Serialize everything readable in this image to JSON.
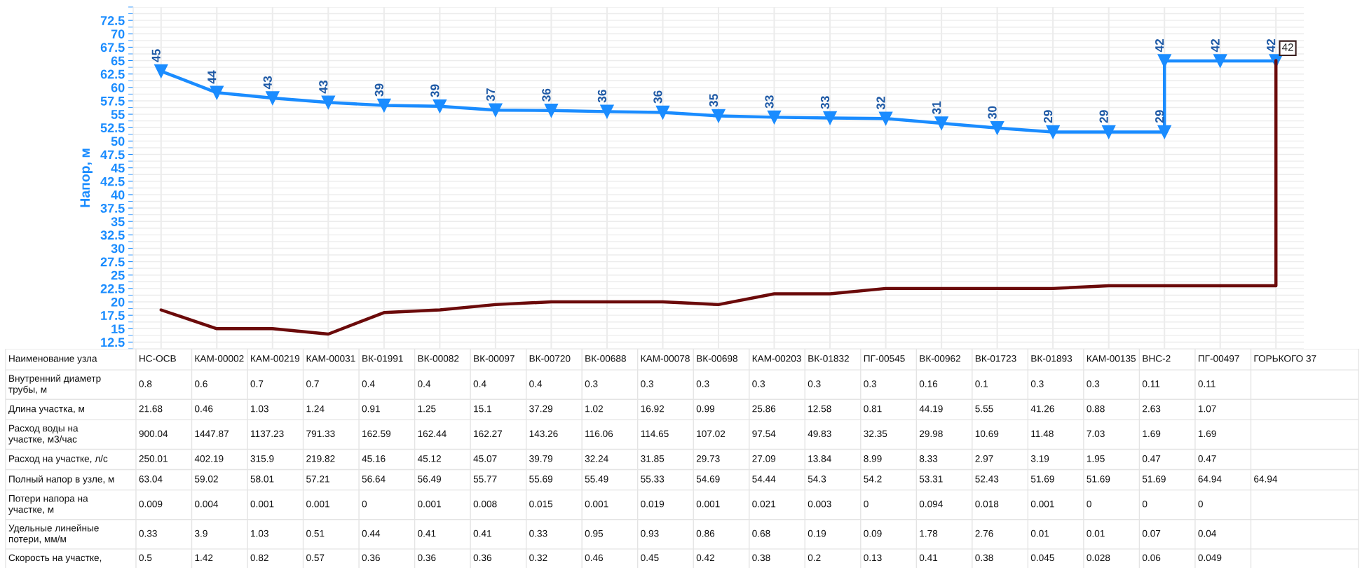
{
  "chart_data": {
    "type": "line",
    "ylabel": "Напор, м",
    "categories": [
      "НС-ОСВ",
      "КАМ-00002",
      "КАМ-00219",
      "КАМ-00031",
      "ВК-01991",
      "ВК-00082",
      "ВК-00097",
      "ВК-00720",
      "ВК-00688",
      "КАМ-00078",
      "ВК-00698",
      "КАМ-00203",
      "ВК-01832",
      "ПГ-00545",
      "ВК-00962",
      "ВК-01723",
      "ВК-01893",
      "КАМ-00135",
      "ВНС-2",
      "ПГ-00497",
      "ГОРЬКОГО 37"
    ],
    "series": [
      {
        "color": "#1a8cff",
        "marker": "triangle",
        "x": [
          "НС-ОСВ",
          "КАМ-00002",
          "КАМ-00219",
          "КАМ-00031",
          "ВК-01991",
          "ВК-00082",
          "ВК-00097",
          "ВК-00720",
          "ВК-00688",
          "КАМ-00078",
          "ВК-00698",
          "КАМ-00203",
          "ВК-01832",
          "ПГ-00545",
          "ВК-00962",
          "ВК-01723",
          "ВК-01893",
          "КАМ-00135",
          "ВНС-2",
          "ВНС-2",
          "ПГ-00497",
          "ГОРЬКОГО 37"
        ],
        "values": [
          63.04,
          59.02,
          58.01,
          57.21,
          56.64,
          56.49,
          55.77,
          55.69,
          55.49,
          55.33,
          54.69,
          54.44,
          54.3,
          54.2,
          53.31,
          52.43,
          51.69,
          51.69,
          51.69,
          64.94,
          64.94,
          64.94
        ]
      },
      {
        "color": "#6b0a0a",
        "x": [
          "НС-ОСВ",
          "КАМ-00002",
          "КАМ-00219",
          "КАМ-00031",
          "ВК-01991",
          "ВК-00082",
          "ВК-00097",
          "ВК-00720",
          "ВК-00688",
          "КАМ-00078",
          "ВК-00698",
          "КАМ-00203",
          "ВК-01832",
          "ПГ-00545",
          "ВК-00962",
          "ВК-01723",
          "ВК-01893",
          "КАМ-00135",
          "ВНС-2",
          "ПГ-00497",
          "ГОРЬКОГО 37",
          "ГОРЬКОГО 37"
        ],
        "values": [
          18.5,
          15,
          15,
          14,
          18,
          18.5,
          19.5,
          20,
          20,
          20,
          19.5,
          21.5,
          21.5,
          22.5,
          22.5,
          22.5,
          22.5,
          23,
          23,
          23,
          23,
          65
        ]
      }
    ],
    "ylim": [
      11.25,
      75
    ],
    "yticks": [
      12.5,
      15,
      17.5,
      20,
      22.5,
      25,
      27.5,
      30,
      32.5,
      35,
      37.5,
      40,
      42.5,
      45,
      47.5,
      50,
      52.5,
      55,
      57.5,
      60,
      62.5,
      65,
      67.5,
      70,
      72.5
    ],
    "grid": true,
    "annotations": [
      "Наименование узла",
      "Внутренний диаметр\nтрубы, м",
      "0.8",
      "0.6",
      "0.7",
      "0.7",
      "0.4",
      "0.4",
      "0.4",
      "0.4",
      "0.3",
      "0.3",
      "0.3",
      "0.3",
      "0.3",
      "0.3",
      "0.16",
      "0.1",
      "0.3",
      "0.3",
      "0.11",
      "0.11",
      null,
      "Длина участка, м",
      "21.68",
      "0.46",
      "1.03",
      "1.24",
      "0.91",
      "1.25",
      "15.1",
      "37.29",
      "1.02",
      "16.92",
      "0.99",
      "25.86",
      "12.58",
      "0.81",
      "44.19",
      "5.55",
      "41.26",
      "0.88",
      "2.63",
      "1.07",
      null,
      "Расход воды на\nучастке, м3/час",
      "900.04",
      "1447.87",
      "1137.23",
      "791.33",
      "162.59",
      "162.44",
      "162.27",
      "143.26",
      "116.06",
      "114.65",
      "107.02",
      "97.54",
      "49.83",
      "32.35",
      "29.98",
      "10.69",
      "11.48",
      "7.03",
      "1.69",
      "1.69",
      null,
      "Расход на участке, л/с",
      "250.01",
      "402.19",
      "315.9",
      "219.82",
      "45.16",
      "45.12",
      "45.07",
      "39.79",
      "32.24",
      "31.85",
      "29.73",
      "27.09",
      "13.84",
      "8.99",
      "8.33",
      "2.97",
      "3.19",
      "1.95",
      "0.47",
      "0.47",
      null,
      "Полный напор в узле, м",
      "63.04",
      "59.02",
      "58.01",
      "57.21",
      "56.64",
      "56.49",
      "55.77",
      "55.69",
      "55.49",
      "55.33",
      "54.69",
      "54.44",
      "54.3",
      "54.2",
      "53.31",
      "52.43",
      "51.69",
      "51.69",
      "51.69",
      "64.94",
      "64.94",
      "Потери напора на\nучастке, м",
      "0.009",
      "0.004",
      "0.001",
      "0.001",
      "0",
      "0.001",
      "0.008",
      "0.015",
      "0.001",
      "0.019",
      "0.001",
      "0.021",
      "0.003",
      "0",
      "0.094",
      "0.018",
      "0.001",
      "0",
      "0",
      "0",
      null,
      "Удельные линейные\nпотери, мм/м",
      "0.33",
      "3.9",
      "1.03",
      "0.51",
      "0.44",
      "0.41",
      "0.41",
      "0.33",
      "0.95",
      "0.93",
      "0.86",
      "0.68",
      "0.19",
      "0.09",
      "1.78",
      "2.76",
      "0.01",
      "0.01",
      "0.07",
      "0.04",
      null,
      "Скорость на участке,",
      "0.5",
      "1.42",
      "0.82",
      "0.57",
      "0.36",
      "0.36",
      "0.36",
      "0.32",
      "0.46",
      "0.45",
      "0.42",
      "0.38",
      "0.2",
      "0.13",
      "0.41",
      "0.38",
      "0.045",
      "0.028",
      "0.06",
      "0.049",
      null,
      {
        "text": "45",
        "x": "НС-ОСВ",
        "y": 63.04
      },
      {
        "text": "44",
        "x": "КАМ-00002",
        "y": 59.02
      },
      {
        "text": "43",
        "x": "КАМ-00219",
        "y": 58.01
      },
      {
        "text": "43",
        "x": "КАМ-00031",
        "y": 57.21
      },
      {
        "text": "39",
        "x": "ВК-01991",
        "y": 56.64
      },
      {
        "text": "39",
        "x": "ВК-00082",
        "y": 56.49
      },
      {
        "text": "37",
        "x": "ВК-00097",
        "y": 55.77
      },
      {
        "text": "36",
        "x": "ВК-00720",
        "y": 55.69
      },
      {
        "text": "36",
        "x": "ВК-00688",
        "y": 55.49
      },
      {
        "text": "36",
        "x": "КАМ-00078",
        "y": 55.33
      },
      {
        "text": "35",
        "x": "ВК-00698",
        "y": 54.69
      },
      {
        "text": "33",
        "x": "КАМ-00203",
        "y": 54.44
      },
      {
        "text": "33",
        "x": "ВК-01832",
        "y": 54.3
      },
      {
        "text": "32",
        "x": "ПГ-00545",
        "y": 54.2
      },
      {
        "text": "31",
        "x": "ВК-00962",
        "y": 53.31
      },
      {
        "text": "30",
        "x": "ВК-01723",
        "y": 52.43
      },
      {
        "text": "29",
        "x": "ВК-01893",
        "y": 51.69
      },
      {
        "text": "29",
        "x": "КАМ-00135",
        "y": 51.69
      },
      {
        "text": "29",
        "x": "ВНС-2",
        "y": 51.69
      },
      {
        "text": "42",
        "x": "ВНС-2",
        "y": 64.94
      },
      {
        "text": "42",
        "x": "ПГ-00497",
        "y": 64.94
      },
      {
        "text": "42",
        "x": "ГОРЬКОГО 37",
        "y": 64.94
      },
      {
        "text": "42",
        "x": "ГОРЬКОГО 37",
        "y": 64.94
      }
    ]
  }
}
